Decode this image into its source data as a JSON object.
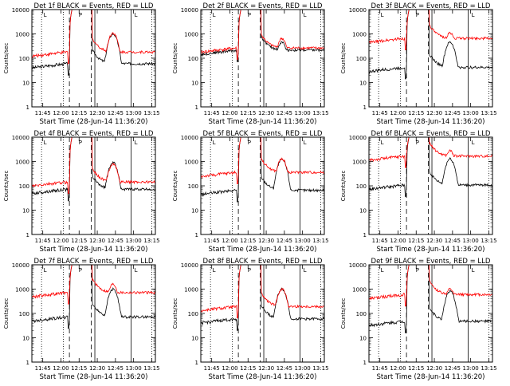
{
  "figure": {
    "x_ticks": [
      "11:45",
      "12:00",
      "12:15",
      "12:30",
      "12:45",
      "13:00",
      "13:15"
    ],
    "y_ticks": [
      "1",
      "10",
      "100",
      "1000",
      "10000"
    ],
    "y_label": "Counts/sec",
    "x_label": "Start Time (28-Jun-14 11:36:20)",
    "colors": {
      "events": "#000000",
      "lld": "#ff0000",
      "axes": "#000000"
    },
    "markers": {
      "attenuator_in": "A",
      "saa": "S",
      "p_marker": "P",
      "l_marker": "L"
    }
  },
  "chart_data": [
    {
      "type": "line",
      "title": "Det 1f BLACK = Events, RED = LLD",
      "xlabel": "Start Time (28-Jun-14 11:36:20)",
      "ylabel": "Counts/sec",
      "yscale": "log",
      "ylim": [
        1,
        10000
      ],
      "xlim": [
        "11:36",
        "13:18"
      ],
      "series": [
        {
          "name": "Events",
          "color": "#000000",
          "bg": 50,
          "bump": 1000
        },
        {
          "name": "LLD",
          "color": "#ff0000",
          "bg": 150,
          "bump": 1100
        }
      ]
    },
    {
      "type": "line",
      "title": "Det 2f BLACK = Events, RED = LLD",
      "xlabel": "Start Time (28-Jun-14 11:36:20)",
      "ylabel": "Counts/sec",
      "yscale": "log",
      "ylim": [
        1,
        10000
      ],
      "xlim": [
        "11:36",
        "13:18"
      ],
      "series": [
        {
          "name": "Events",
          "color": "#000000",
          "bg": 180,
          "bump": 450
        },
        {
          "name": "LLD",
          "color": "#ff0000",
          "bg": 220,
          "bump": 650
        }
      ]
    },
    {
      "type": "line",
      "title": "Det 3f BLACK = Events, RED = LLD",
      "xlabel": "Start Time (28-Jun-14 11:36:20)",
      "ylabel": "Counts/sec",
      "yscale": "log",
      "ylim": [
        1,
        10000
      ],
      "xlim": [
        "11:36",
        "13:18"
      ],
      "series": [
        {
          "name": "Events",
          "color": "#000000",
          "bg": 35,
          "bump": 450
        },
        {
          "name": "LLD",
          "color": "#ff0000",
          "bg": 550,
          "bump": 1100
        }
      ]
    },
    {
      "type": "line",
      "title": "Det 4f BLACK = Events, RED = LLD",
      "xlabel": "Start Time (28-Jun-14 11:36:20)",
      "ylabel": "Counts/sec",
      "yscale": "log",
      "ylim": [
        1,
        10000
      ],
      "xlim": [
        "11:36",
        "13:18"
      ],
      "series": [
        {
          "name": "Events",
          "color": "#000000",
          "bg": 60,
          "bump": 900
        },
        {
          "name": "LLD",
          "color": "#ff0000",
          "bg": 120,
          "bump": 800
        }
      ]
    },
    {
      "type": "line",
      "title": "Det 5f BLACK = Events, RED = LLD",
      "xlabel": "Start Time (28-Jun-14 11:36:20)",
      "ylabel": "Counts/sec",
      "yscale": "log",
      "ylim": [
        1,
        10000
      ],
      "xlim": [
        "11:36",
        "13:18"
      ],
      "series": [
        {
          "name": "Events",
          "color": "#000000",
          "bg": 55,
          "bump": 1200
        },
        {
          "name": "LLD",
          "color": "#ff0000",
          "bg": 300,
          "bump": 1300
        }
      ]
    },
    {
      "type": "line",
      "title": "Det 6f BLACK = Events, RED = LLD",
      "xlabel": "Start Time (28-Jun-14 11:36:20)",
      "ylabel": "Counts/sec",
      "yscale": "log",
      "ylim": [
        1,
        10000
      ],
      "xlim": [
        "11:36",
        "13:18"
      ],
      "series": [
        {
          "name": "Events",
          "color": "#000000",
          "bg": 90,
          "bump": 1300
        },
        {
          "name": "LLD",
          "color": "#ff0000",
          "bg": 1400,
          "bump": 2800
        }
      ]
    },
    {
      "type": "line",
      "title": "Det 7f BLACK = Events, RED = LLD",
      "xlabel": "Start Time (28-Jun-14 11:36:20)",
      "ylabel": "Counts/sec",
      "yscale": "log",
      "ylim": [
        1,
        10000
      ],
      "xlim": [
        "11:36",
        "13:18"
      ],
      "series": [
        {
          "name": "Events",
          "color": "#000000",
          "bg": 60,
          "bump": 1000
        },
        {
          "name": "LLD",
          "color": "#ff0000",
          "bg": 600,
          "bump": 1600
        }
      ]
    },
    {
      "type": "line",
      "title": "Det 8f BLACK = Events, RED = LLD",
      "xlabel": "Start Time (28-Jun-14 11:36:20)",
      "ylabel": "Counts/sec",
      "yscale": "log",
      "ylim": [
        1,
        10000
      ],
      "xlim": [
        "11:36",
        "13:18"
      ],
      "series": [
        {
          "name": "Events",
          "color": "#000000",
          "bg": 50,
          "bump": 1000
        },
        {
          "name": "LLD",
          "color": "#ff0000",
          "bg": 160,
          "bump": 1000
        }
      ]
    },
    {
      "type": "line",
      "title": "Det 9f BLACK = Events, RED = LLD",
      "xlabel": "Start Time (28-Jun-14 11:36:20)",
      "ylabel": "Counts/sec",
      "yscale": "log",
      "ylim": [
        1,
        10000
      ],
      "xlim": [
        "11:36",
        "13:18"
      ],
      "series": [
        {
          "name": "Events",
          "color": "#000000",
          "bg": 40,
          "bump": 800
        },
        {
          "name": "LLD",
          "color": "#ff0000",
          "bg": 500,
          "bump": 1000
        }
      ]
    }
  ]
}
